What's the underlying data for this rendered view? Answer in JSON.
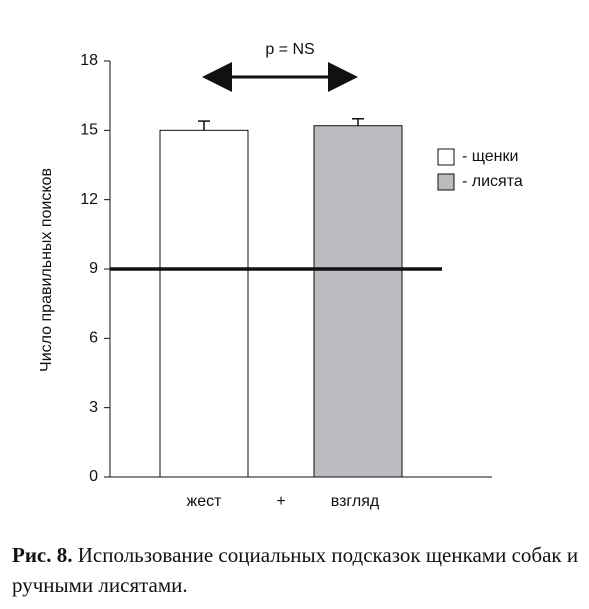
{
  "chart_data": {
    "type": "bar",
    "y_label": "Число правильных поисков",
    "x_labels": [
      "жест",
      "+",
      "взгляд"
    ],
    "annotation": "p = NS",
    "ylim": [
      0,
      18
    ],
    "yticks": [
      0,
      3,
      6,
      9,
      12,
      15,
      18
    ],
    "reference_line": 9,
    "series": [
      {
        "name": "- щенки",
        "color": "#ffffff",
        "values": [
          15.0
        ],
        "errors": [
          0.4
        ]
      },
      {
        "name": "- лисята",
        "color": "#bbbcc0",
        "values": [
          15.2
        ],
        "errors": [
          0.3
        ]
      }
    ]
  },
  "caption": {
    "label": "Рис. 8.",
    "text": "Использование социальных подсказок щенками собак и ручными лисятами."
  }
}
